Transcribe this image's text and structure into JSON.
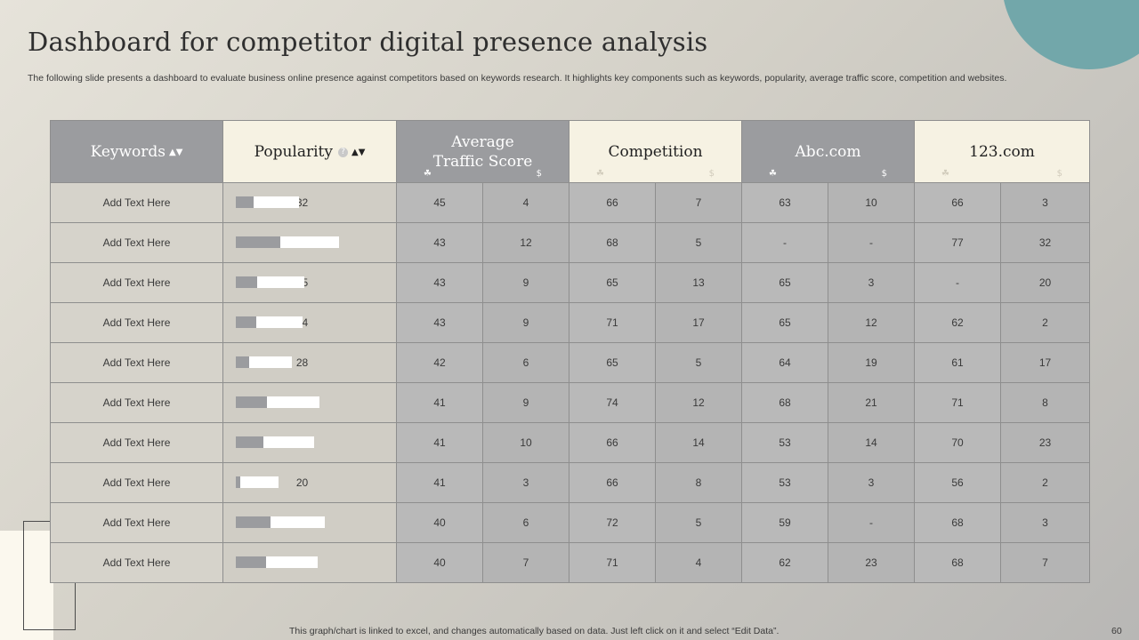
{
  "title": "Dashboard for competitor digital presence analysis",
  "subtitle": "The following slide presents a dashboard to evaluate business online presence against competitors based on keywords research. It highlights key components such as keywords, popularity, average traffic score, competition and websites.",
  "headers": {
    "keywords": "Keywords",
    "popularity": "Popularity",
    "traffic_line1": "Average",
    "traffic_line2": "Traffic Score",
    "competition": "Competition",
    "abc": "Abc.com",
    "site123": "123.com"
  },
  "icons": {
    "sort": "sort-icon",
    "help": "help-icon",
    "leaf": "leaf-icon",
    "dollar": "dollar-sort-icon"
  },
  "glyphs": {
    "sort": "▲▼",
    "help": "?",
    "leaf": "☘",
    "dollar": "$"
  },
  "colors": {
    "teal_accent": "#72a7aa",
    "header_dark": "#9b9c9f",
    "header_light": "#f6f2e3",
    "bar_dark": "#9b9c9f",
    "bar_light": "#ffffff"
  },
  "rows": [
    {
      "keyword": "Add Text Here",
      "popularity": "32",
      "traffic_a": "45",
      "traffic_b": "4",
      "comp_a": "66",
      "comp_b": "7",
      "abc_a": "63",
      "abc_b": "10",
      "s123_a": "66",
      "s123_b": "3"
    },
    {
      "keyword": "Add Text Here",
      "popularity": "56",
      "traffic_a": "43",
      "traffic_b": "12",
      "comp_a": "68",
      "comp_b": "5",
      "abc_a": "-",
      "abc_b": "-",
      "s123_a": "77",
      "s123_b": "32"
    },
    {
      "keyword": "Add Text Here",
      "popularity": "35",
      "traffic_a": "43",
      "traffic_b": "9",
      "comp_a": "65",
      "comp_b": "13",
      "abc_a": "65",
      "abc_b": "3",
      "s123_a": "-",
      "s123_b": "20"
    },
    {
      "keyword": "Add Text Here",
      "popularity": "34",
      "traffic_a": "43",
      "traffic_b": "9",
      "comp_a": "71",
      "comp_b": "17",
      "abc_a": "65",
      "abc_b": "12",
      "s123_a": "62",
      "s123_b": "2"
    },
    {
      "keyword": "Add Text Here",
      "popularity": "28",
      "traffic_a": "42",
      "traffic_b": "6",
      "comp_a": "65",
      "comp_b": "5",
      "abc_a": "64",
      "abc_b": "19",
      "s123_a": "61",
      "s123_b": "17"
    },
    {
      "keyword": "Add Text Here",
      "popularity": "44",
      "traffic_a": "41",
      "traffic_b": "9",
      "comp_a": "74",
      "comp_b": "12",
      "abc_a": "68",
      "abc_b": "21",
      "s123_a": "71",
      "s123_b": "8"
    },
    {
      "keyword": "Add Text Here",
      "popularity": "41",
      "traffic_a": "41",
      "traffic_b": "10",
      "comp_a": "66",
      "comp_b": "14",
      "abc_a": "53",
      "abc_b": "14",
      "s123_a": "70",
      "s123_b": "23"
    },
    {
      "keyword": "Add Text Here",
      "popularity": "20",
      "traffic_a": "41",
      "traffic_b": "3",
      "comp_a": "66",
      "comp_b": "8",
      "abc_a": "53",
      "abc_b": "3",
      "s123_a": "56",
      "s123_b": "2"
    },
    {
      "keyword": "Add Text Here",
      "popularity": "47",
      "traffic_a": "40",
      "traffic_b": "6",
      "comp_a": "72",
      "comp_b": "5",
      "abc_a": "59",
      "abc_b": "-",
      "s123_a": "68",
      "s123_b": "3"
    },
    {
      "keyword": "Add Text Here",
      "popularity": "43",
      "traffic_a": "40",
      "traffic_b": "7",
      "comp_a": "71",
      "comp_b": "4",
      "abc_a": "62",
      "abc_b": "23",
      "s123_a": "68",
      "s123_b": "7"
    }
  ],
  "footer": "This graph/chart is linked to excel,  and changes automatically based on data. Just left click on it and select “Edit Data”.",
  "page_number": "60"
}
